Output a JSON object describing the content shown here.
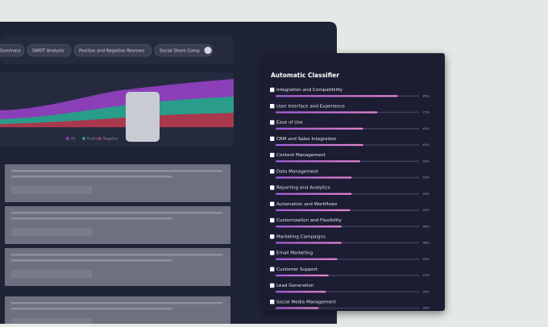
{
  "tabs": [
    "Summary",
    "SWOT Analysis",
    "Positive and Negative Reviews",
    "Social Share Comp"
  ],
  "chart": {
    "legend": [
      "All",
      "Positive",
      "Negative"
    ]
  },
  "classifier": {
    "title": "Automatic Classifier",
    "items": [
      {
        "label": "Integration and Compatibility",
        "value": 85,
        "value_label": "85%"
      },
      {
        "label": "User Interface and Experience",
        "value": 71,
        "value_label": "71%"
      },
      {
        "label": "Ease of Use",
        "value": 61,
        "value_label": "61%"
      },
      {
        "label": "CRM and Sales Integration",
        "value": 61,
        "value_label": "61%"
      },
      {
        "label": "Content Management",
        "value": 59,
        "value_label": "59%"
      },
      {
        "label": "Data Management",
        "value": 53,
        "value_label": "53%"
      },
      {
        "label": "Reporting and Analytics",
        "value": 53,
        "value_label": "53%"
      },
      {
        "label": "Automation and Workflows",
        "value": 52,
        "value_label": "52%"
      },
      {
        "label": "Customization and Flexibility",
        "value": 46,
        "value_label": "46%"
      },
      {
        "label": "Marketing Campaigns",
        "value": 46,
        "value_label": "46%"
      },
      {
        "label": "Email Marketing",
        "value": 43,
        "value_label": "43%"
      },
      {
        "label": "Customer Support",
        "value": 37,
        "value_label": "37%"
      },
      {
        "label": "Lead Generation",
        "value": 35,
        "value_label": "35%"
      },
      {
        "label": "Social Media Management",
        "value": 30,
        "value_label": "30%"
      }
    ]
  }
}
